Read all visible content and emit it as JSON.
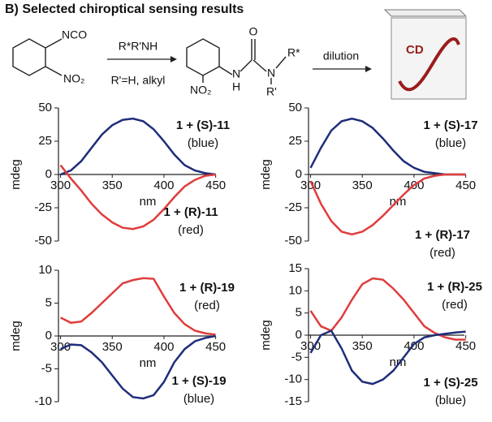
{
  "title": "B) Selected chiroptical sensing results",
  "scheme": {
    "reagent_group": "NCO",
    "nitro": "NO₂",
    "amine": "R*R'NH",
    "condition": "R'=H, alkyl",
    "urea_o": "O",
    "urea_nh": "N",
    "urea_h": "H",
    "urea_n": "N",
    "urea_rstar": "R*",
    "urea_rprime": "R'",
    "urea_nitro": "NO₂",
    "step": "dilution",
    "cell_label": "CD"
  },
  "chart_data": [
    {
      "type": "line",
      "x_label": "nm",
      "y_label": "mdeg",
      "x": [
        300,
        310,
        320,
        330,
        340,
        350,
        360,
        370,
        380,
        390,
        400,
        410,
        420,
        430,
        440,
        450
      ],
      "xlim": [
        298,
        455
      ],
      "xticks": [
        300,
        350,
        400,
        450
      ],
      "ylim": [
        -50,
        50
      ],
      "yticks": [
        -50,
        -25,
        0,
        25,
        50
      ],
      "series": [
        {
          "name": "1 + (S)-11",
          "note": "(blue)",
          "color": "#1f2d7a",
          "values": [
            0,
            3,
            10,
            20,
            30,
            37,
            41,
            42,
            40,
            34,
            25,
            15,
            7,
            3,
            1,
            0
          ]
        },
        {
          "name": "1 + (R)-11",
          "note": "(red)",
          "color": "#e03c3c",
          "values": [
            7,
            -3,
            -12,
            -22,
            -30,
            -36,
            -40,
            -41,
            -39,
            -34,
            -26,
            -17,
            -9,
            -4,
            -1,
            0
          ]
        }
      ]
    },
    {
      "type": "line",
      "x_label": "nm",
      "y_label": "mdeg",
      "x": [
        300,
        310,
        320,
        330,
        340,
        350,
        360,
        370,
        380,
        390,
        400,
        410,
        420,
        430,
        440,
        450
      ],
      "xlim": [
        298,
        455
      ],
      "xticks": [
        300,
        350,
        400,
        450
      ],
      "ylim": [
        -50,
        50
      ],
      "yticks": [
        -50,
        -25,
        0,
        25,
        50
      ],
      "series": [
        {
          "name": "1 + (S)-17",
          "note": "(blue)",
          "color": "#1f2d7a",
          "values": [
            5,
            20,
            33,
            40,
            42,
            40,
            35,
            27,
            18,
            10,
            5,
            2,
            1,
            0,
            0,
            0
          ]
        },
        {
          "name": "1 + (R)-17",
          "note": "(red)",
          "color": "#e03c3c",
          "values": [
            -5,
            -22,
            -35,
            -43,
            -45,
            -43,
            -38,
            -31,
            -23,
            -15,
            -8,
            -3,
            -1,
            0,
            0,
            0
          ]
        }
      ]
    },
    {
      "type": "line",
      "x_label": "nm",
      "y_label": "mdeg",
      "x": [
        300,
        310,
        320,
        330,
        340,
        350,
        360,
        370,
        380,
        390,
        400,
        410,
        420,
        430,
        440,
        450
      ],
      "xlim": [
        298,
        455
      ],
      "xticks": [
        300,
        350,
        400,
        450
      ],
      "ylim": [
        -10,
        10
      ],
      "yticks": [
        -10,
        -5,
        0,
        5,
        10
      ],
      "series": [
        {
          "name": "1 + (R)-19",
          "note": "(red)",
          "color": "#e03c3c",
          "values": [
            2.8,
            2,
            2.2,
            3.5,
            5,
            6.5,
            8,
            8.5,
            8.8,
            8.7,
            6,
            3.5,
            1.8,
            0.8,
            0.4,
            0.2
          ]
        },
        {
          "name": "1 + (S)-19",
          "note": "(blue)",
          "color": "#1f2d7a",
          "values": [
            -2,
            -1.3,
            -1.4,
            -2.5,
            -4,
            -6,
            -8,
            -9.3,
            -9.5,
            -9,
            -7,
            -4,
            -2,
            -0.8,
            -0.3,
            0
          ]
        }
      ]
    },
    {
      "type": "line",
      "x_label": "nm",
      "y_label": "mdeg",
      "x": [
        300,
        310,
        320,
        330,
        340,
        350,
        360,
        370,
        380,
        390,
        400,
        410,
        420,
        430,
        440,
        450
      ],
      "xlim": [
        298,
        455
      ],
      "xticks": [
        300,
        350,
        400,
        450
      ],
      "ylim": [
        -15,
        15
      ],
      "yticks": [
        -15,
        -10,
        -5,
        0,
        5,
        10,
        15
      ],
      "series": [
        {
          "name": "1 + (R)-25",
          "note": "(red)",
          "color": "#e03c3c",
          "values": [
            5.5,
            2,
            1,
            4,
            8,
            11.5,
            12.8,
            12.5,
            10.5,
            8,
            5,
            2,
            0.5,
            -0.5,
            -1,
            -1
          ]
        },
        {
          "name": "1 + (S)-25",
          "note": "(blue)",
          "color": "#1f2d7a",
          "values": [
            -4,
            0,
            1,
            -3,
            -8,
            -10.5,
            -11,
            -10,
            -8,
            -5,
            -2,
            -0.5,
            0,
            0.3,
            0.6,
            0.8
          ]
        }
      ]
    }
  ]
}
